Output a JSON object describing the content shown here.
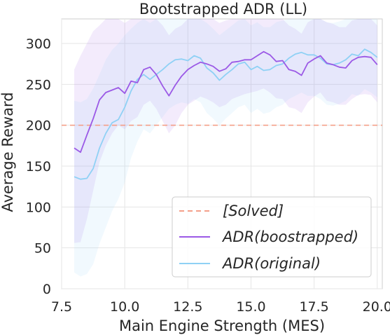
{
  "chart_data": {
    "type": "line",
    "title": "Bootstrapped ADR (LL)",
    "xlabel": "Main Engine Strength (MES)",
    "ylabel": "Average Reward",
    "xlim": [
      7.5,
      20.2
    ],
    "ylim": [
      0,
      330
    ],
    "xticks": [
      7.5,
      10.0,
      12.5,
      15.0,
      17.5,
      20.0
    ],
    "xtick_labels": [
      "7.5",
      "10.0",
      "12.5",
      "15.0",
      "17.5",
      "20.0"
    ],
    "yticks": [
      0,
      50,
      100,
      150,
      200,
      250,
      300
    ],
    "ytick_labels": [
      "0",
      "50",
      "100",
      "150",
      "200",
      "250",
      "300"
    ],
    "grid": true,
    "legend_position": "lower-right",
    "reference_line": {
      "name": "[Solved]",
      "y": 200,
      "color": "#f4a08a",
      "style": "dashed"
    },
    "x": [
      8.0,
      8.25,
      8.5,
      8.75,
      9.0,
      9.25,
      9.5,
      9.75,
      10.0,
      10.25,
      10.5,
      10.75,
      11.0,
      11.25,
      11.5,
      11.75,
      12.0,
      12.25,
      12.5,
      12.75,
      13.0,
      13.25,
      13.5,
      13.75,
      14.0,
      14.25,
      14.5,
      14.75,
      15.0,
      15.25,
      15.5,
      15.75,
      16.0,
      16.25,
      16.5,
      16.75,
      17.0,
      17.25,
      17.5,
      17.75,
      18.0,
      18.25,
      18.5,
      18.75,
      19.0,
      19.25,
      19.5,
      19.75,
      20.0
    ],
    "series": [
      {
        "name": "ADR(boostrapped)",
        "color": "#9b59e6",
        "values": [
          172,
          167,
          188,
          208,
          231,
          240,
          243,
          246,
          239,
          254,
          252,
          268,
          271,
          262,
          248,
          236,
          249,
          260,
          268,
          273,
          277,
          275,
          272,
          266,
          269,
          277,
          278,
          280,
          280,
          285,
          290,
          286,
          278,
          279,
          268,
          266,
          261,
          276,
          281,
          285,
          276,
          274,
          271,
          270,
          279,
          283,
          284,
          283,
          274
        ],
        "band_low": [
          56,
          57,
          85,
          120,
          155,
          175,
          190,
          200,
          195,
          205,
          210,
          225,
          230,
          220,
          205,
          190,
          200,
          215,
          225,
          230,
          235,
          232,
          228,
          222,
          225,
          232,
          235,
          238,
          240,
          242,
          245,
          240,
          233,
          232,
          222,
          220,
          215,
          228,
          235,
          240,
          230,
          228,
          225,
          225,
          232,
          237,
          238,
          237,
          228
        ],
        "band_high": [
          268,
          285,
          300,
          315,
          322,
          330,
          330,
          330,
          325,
          330,
          330,
          330,
          330,
          330,
          322,
          310,
          318,
          322,
          330,
          330,
          330,
          330,
          330,
          325,
          328,
          330,
          330,
          330,
          330,
          330,
          330,
          330,
          330,
          330,
          322,
          318,
          312,
          326,
          330,
          330,
          326,
          324,
          320,
          320,
          328,
          330,
          330,
          330,
          322
        ]
      },
      {
        "name": "ADR(original)",
        "color": "#8fd1f5",
        "values": [
          137,
          134,
          135,
          147,
          172,
          190,
          203,
          207,
          222,
          242,
          256,
          262,
          256,
          262,
          268,
          275,
          280,
          281,
          279,
          285,
          282,
          270,
          264,
          255,
          262,
          268,
          275,
          277,
          268,
          272,
          267,
          268,
          273,
          275,
          282,
          287,
          289,
          286,
          286,
          282,
          275,
          274,
          276,
          280,
          287,
          285,
          293,
          289,
          283
        ],
        "band_low": [
          20,
          15,
          18,
          30,
          55,
          75,
          95,
          110,
          130,
          160,
          180,
          195,
          190,
          200,
          210,
          220,
          225,
          228,
          226,
          232,
          228,
          215,
          208,
          200,
          208,
          215,
          222,
          225,
          215,
          220,
          214,
          216,
          222,
          225,
          232,
          236,
          240,
          236,
          236,
          232,
          225,
          224,
          226,
          230,
          238,
          236,
          244,
          240,
          234
        ],
        "band_high": [
          230,
          228,
          232,
          245,
          262,
          280,
          292,
          300,
          310,
          318,
          325,
          330,
          325,
          330,
          330,
          330,
          330,
          330,
          330,
          330,
          330,
          325,
          318,
          310,
          316,
          322,
          328,
          330,
          322,
          326,
          320,
          320,
          326,
          328,
          330,
          330,
          330,
          330,
          330,
          330,
          326,
          325,
          327,
          330,
          330,
          330,
          330,
          330,
          330
        ]
      }
    ]
  }
}
